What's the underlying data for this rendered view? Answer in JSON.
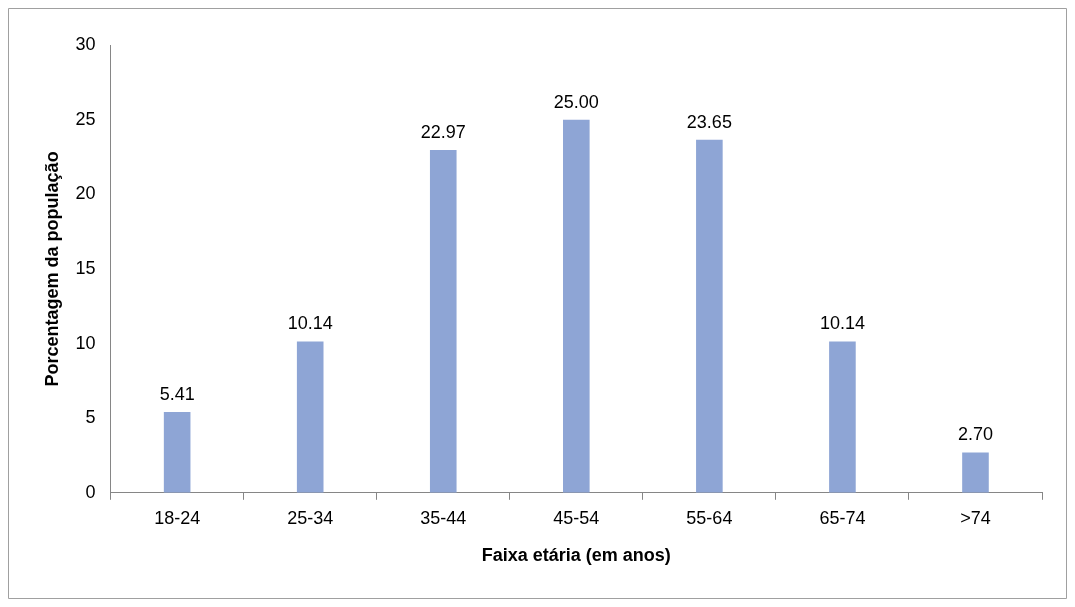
{
  "chart_data": {
    "type": "bar",
    "xlabel": "Faixa etária (em anos)",
    "ylabel": "Porcentagem da população",
    "categories": [
      "18-24",
      "25-34",
      "35-44",
      "45-54",
      "55-64",
      "65-74",
      ">74"
    ],
    "values": [
      5.41,
      10.14,
      22.97,
      25.0,
      23.65,
      10.14,
      2.7
    ],
    "value_labels": [
      "5.41",
      "10.14",
      "22.97",
      "25.00",
      "23.65",
      "10.14",
      "2.70"
    ],
    "color": "#8ea5d5",
    "ylim": [
      0,
      30
    ],
    "yticks": [
      0,
      5,
      10,
      15,
      20,
      25,
      30
    ],
    "grid": false,
    "legend": false
  }
}
